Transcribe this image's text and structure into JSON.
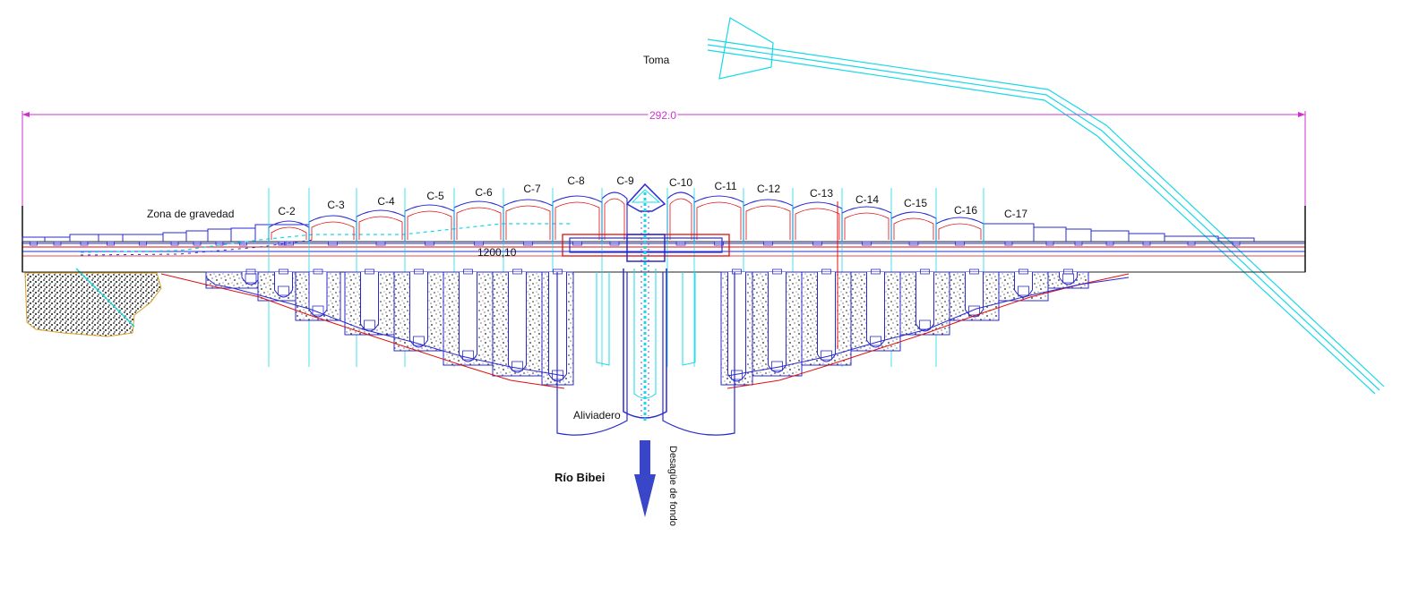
{
  "labels": {
    "toma": "Toma",
    "dimension": "292.0",
    "zona": "Zona de gravedad",
    "elevation": "1200,10",
    "aliviadero": "Aliviadero",
    "rio": "Río Bibei",
    "desague": "Desagüe de fondo"
  },
  "blocks": [
    "C-2",
    "C-3",
    "C-4",
    "C-5",
    "C-6",
    "C-7",
    "C-8",
    "C-9",
    "C-10",
    "C-11",
    "C-12",
    "C-13",
    "C-14",
    "C-15",
    "C-16",
    "C-17"
  ],
  "colors": {
    "outline": "#2a2ad0",
    "red": "#e01010",
    "cyan": "#18d8e8",
    "magenta": "#d030d0",
    "arrow": "#3a46c8",
    "ink": "#111111"
  }
}
